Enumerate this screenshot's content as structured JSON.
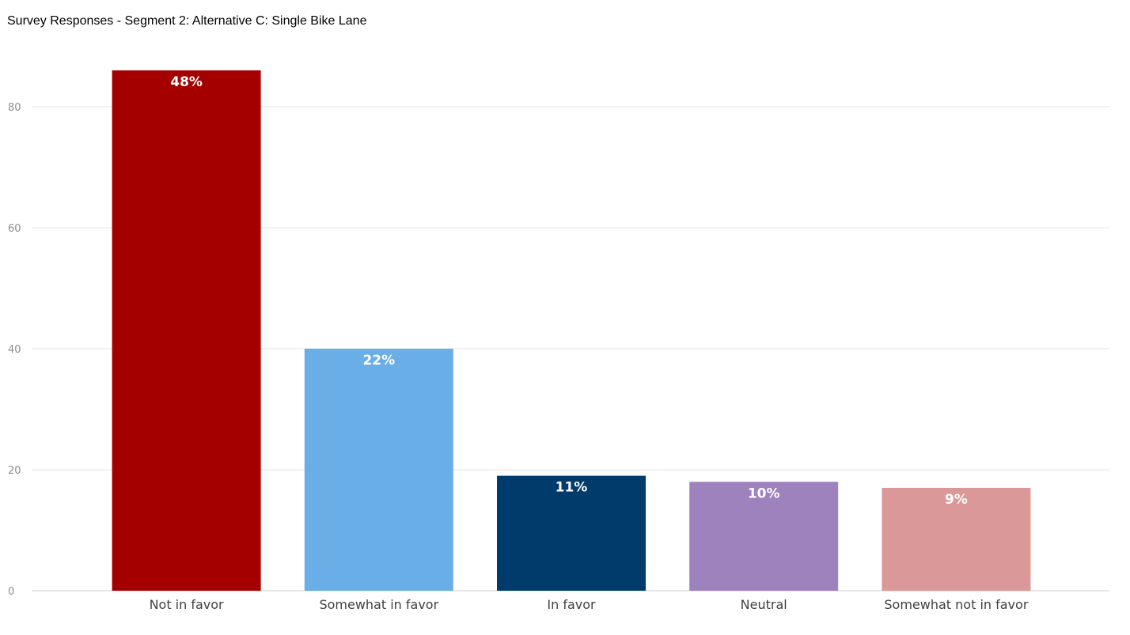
{
  "chart_data": {
    "type": "bar",
    "title": "Survey Responses - Segment 2: Alternative C: Single Bike Lane",
    "xlabel": "",
    "ylabel": "",
    "categories": [
      "Not in favor",
      "Somewhat in favor",
      "In favor",
      "Neutral",
      "Somewhat not in favor"
    ],
    "values": [
      86,
      40,
      19,
      18,
      17
    ],
    "data_labels": [
      "48%",
      "22%",
      "11%",
      "10%",
      "9%"
    ],
    "colors": [
      "#a50000",
      "#69aee6",
      "#003b6b",
      "#9e82bd",
      "#db9898"
    ],
    "yticks": [
      0,
      20,
      40,
      60,
      80
    ],
    "ylim": [
      0,
      86
    ],
    "grid": true,
    "legend": "none"
  }
}
